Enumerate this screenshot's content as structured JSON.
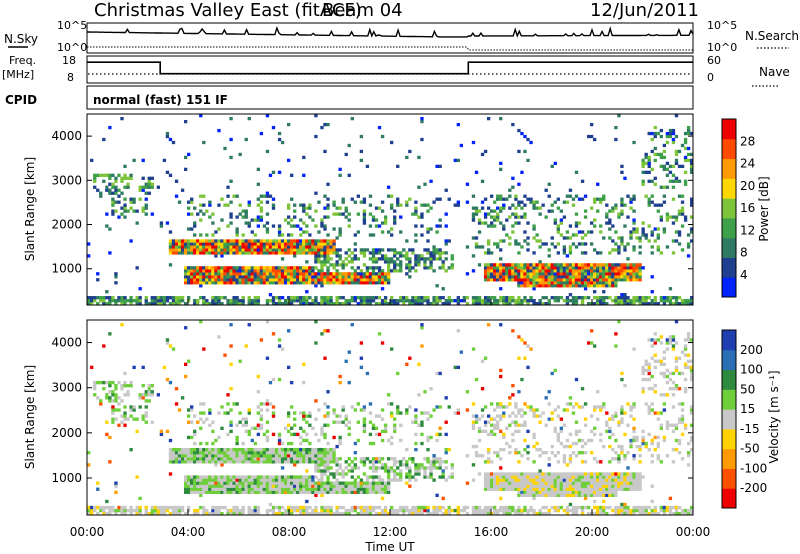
{
  "header": {
    "station": "Christmas Valley East (fitACF)",
    "beam": "Beam 04",
    "date": "12/Jun/2011"
  },
  "top_panels": {
    "nsky_label": "N.Sky",
    "nsearch_label": "N.Search",
    "noise_ticks": [
      "10^5",
      "10^0"
    ],
    "freq_label": "Freq.",
    "freq_unit": "[MHz]",
    "freq_ticks": [
      "18",
      "8"
    ],
    "nave_label": "Nave",
    "nave_ticks": [
      "60",
      "0"
    ],
    "cpid_label": "CPID",
    "cpid_value": "normal (fast) 151 IF"
  },
  "colors": {
    "power": [
      "#0022ff",
      "#1f3f8f",
      "#2f7a62",
      "#3fa04a",
      "#7dc43a",
      "#ffd700",
      "#ff9a00",
      "#ff4a00",
      "#ee0000"
    ],
    "velocity": [
      "#1f3fb0",
      "#2a6fb5",
      "#2e8a3f",
      "#6fcf3a",
      "#c8c8c8",
      "#ffd200",
      "#ff9a00",
      "#ff5000",
      "#ee0000"
    ],
    "noise_sky": "#000000",
    "noise_search": "#000000"
  },
  "chart_data": [
    {
      "type": "heatmap",
      "name": "power",
      "ylabel": "Slant Range [km]",
      "ylim": [
        180,
        4500
      ],
      "yticks": [
        "1000",
        "2000",
        "3000",
        "4000"
      ],
      "xticks": [
        "00:00",
        "04:00",
        "08:00",
        "12:00",
        "16:00",
        "20:00",
        "00:00"
      ],
      "xlim_hours": [
        0,
        24
      ],
      "colorbar_label": "Power [dB]",
      "colorbar_ticks": [
        "4",
        "8",
        "12",
        "16",
        "20",
        "24",
        "28"
      ],
      "colorbar_range": [
        0,
        30
      ]
    },
    {
      "type": "heatmap",
      "name": "velocity",
      "ylabel": "Slant Range [km]",
      "xlabel": "Time UT",
      "ylim": [
        180,
        4500
      ],
      "yticks": [
        "1000",
        "2000",
        "3000",
        "4000"
      ],
      "xticks": [
        "00:00",
        "04:00",
        "08:00",
        "12:00",
        "16:00",
        "20:00",
        "00:00"
      ],
      "xlim_hours": [
        0,
        24
      ],
      "colorbar_label": "Velocity [m s⁻¹]",
      "colorbar_ticks": [
        "200",
        "100",
        "50",
        "15",
        "-15",
        "-50",
        "-100",
        "-200"
      ],
      "colorbar_range": [
        -250,
        250
      ]
    },
    {
      "type": "line",
      "name": "frequency",
      "ylabel": "Freq. [MHz]",
      "ylim": [
        8,
        18
      ],
      "x_hours": [
        0,
        2.9,
        2.9,
        15.1,
        15.1,
        24
      ],
      "values": [
        16.5,
        16.5,
        11,
        11,
        16.5,
        16.5
      ]
    }
  ]
}
